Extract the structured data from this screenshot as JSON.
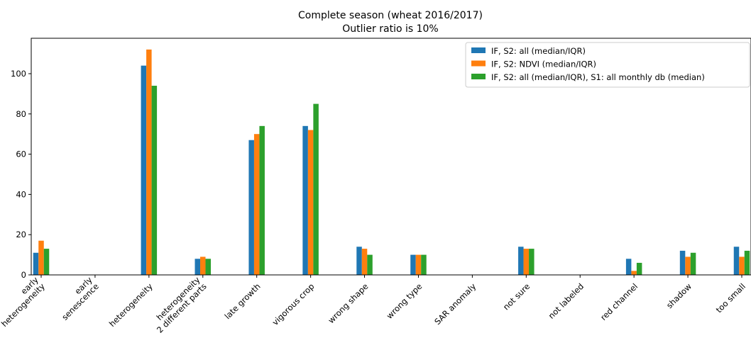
{
  "chart_data": {
    "type": "bar",
    "title": "Complete season (wheat 2016/2017)",
    "subtitle": "Outlier ratio is 10%",
    "categories": [
      [
        "early",
        "heterogeneity"
      ],
      [
        "early",
        "senescence"
      ],
      [
        "heterogeneity"
      ],
      [
        "heterogeneity",
        "2 different parts"
      ],
      [
        "late growth"
      ],
      [
        "vigorous crop"
      ],
      [
        "wrong shape"
      ],
      [
        "wrong type"
      ],
      [
        "SAR anomaly"
      ],
      [
        "not sure"
      ],
      [
        "not labeled"
      ],
      [
        "red channel"
      ],
      [
        "shadow"
      ],
      [
        "too small"
      ]
    ],
    "series": [
      {
        "name": "IF, S2: all (median/IQR)",
        "color": "#1f77b4",
        "values": [
          11,
          0,
          104,
          8,
          67,
          74,
          14,
          10,
          0,
          14,
          0,
          8,
          12,
          14
        ]
      },
      {
        "name": "IF, S2: NDVI (median/IQR)",
        "color": "#ff7f0e",
        "values": [
          17,
          0,
          112,
          9,
          70,
          72,
          13,
          10,
          0,
          13,
          0,
          2,
          9,
          9
        ]
      },
      {
        "name": "IF, S2: all (median/IQR), S1: all monthly db (median)",
        "color": "#2ca02c",
        "values": [
          13,
          0,
          94,
          8,
          74,
          85,
          10,
          10,
          0,
          13,
          0,
          6,
          11,
          12
        ]
      }
    ],
    "ylim": [
      0,
      117.6
    ],
    "yticks": [
      0,
      20,
      40,
      60,
      80,
      100
    ],
    "xlabel": "",
    "ylabel": "",
    "legend": "top-right",
    "grid": false
  }
}
